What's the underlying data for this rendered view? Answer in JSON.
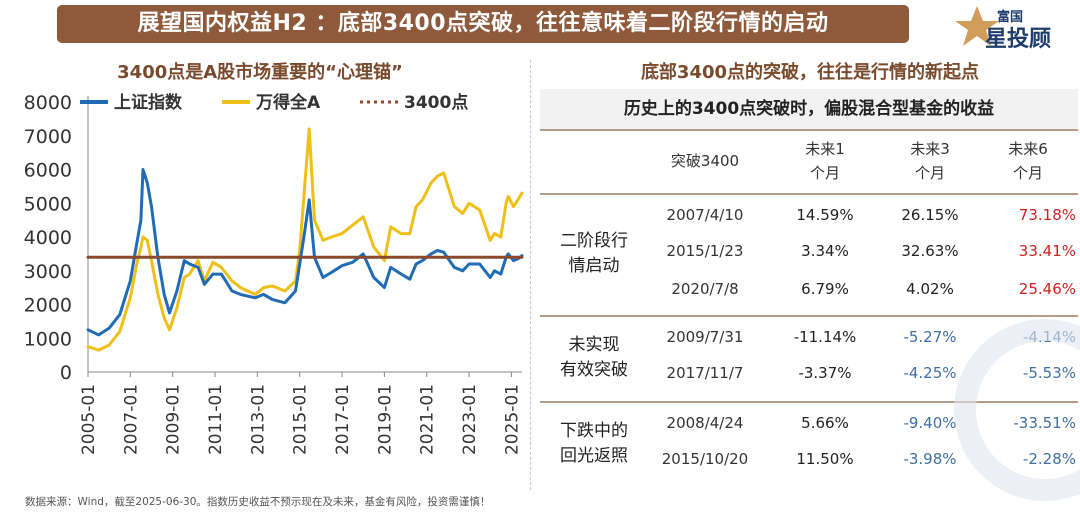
{
  "banner": {
    "title": "展望国内权益H2 ：底部3400点突破，往往意味着二阶段行情的启动"
  },
  "logo": {
    "line1": "富国",
    "line2": "星投顾"
  },
  "left_panel": {
    "title": "3400点是A股市场重要的“心理锚”"
  },
  "right_panel": {
    "title": "底部3400点的突破，往往是行情的新起点"
  },
  "chart_data": {
    "type": "line",
    "title": "3400点是A股市场重要的“心理锚”",
    "ylim": [
      0,
      8000
    ],
    "yticks": [
      0,
      1000,
      2000,
      3000,
      4000,
      5000,
      6000,
      7000,
      8000
    ],
    "xlim": [
      2005.0,
      2025.5
    ],
    "xticks": [
      "2005-01",
      "2007-01",
      "2009-01",
      "2011-01",
      "2013-01",
      "2015-01",
      "2017-01",
      "2019-01",
      "2021-01",
      "2023-01",
      "2025-01"
    ],
    "legend": [
      "上证指数",
      "万得全A",
      "3400点"
    ],
    "series": [
      {
        "name": "上证指数",
        "color": "#1f6bb5",
        "x": [
          2005.0,
          2005.5,
          2006.0,
          2006.5,
          2007.0,
          2007.3,
          2007.5,
          2007.6,
          2007.8,
          2008.0,
          2008.3,
          2008.6,
          2008.85,
          2009.2,
          2009.55,
          2009.8,
          2010.2,
          2010.5,
          2010.9,
          2011.3,
          2011.8,
          2012.2,
          2012.9,
          2013.3,
          2013.7,
          2014.3,
          2014.8,
          2015.0,
          2015.2,
          2015.45,
          2015.7,
          2016.1,
          2016.5,
          2017.0,
          2017.5,
          2018.0,
          2018.5,
          2019.0,
          2019.3,
          2019.8,
          2020.2,
          2020.5,
          2020.8,
          2021.2,
          2021.5,
          2021.8,
          2022.3,
          2022.7,
          2023.0,
          2023.5,
          2024.0,
          2024.2,
          2024.5,
          2024.75,
          2024.85,
          2025.1,
          2025.3,
          2025.5
        ],
        "values": [
          1250,
          1100,
          1300,
          1700,
          2700,
          3800,
          4500,
          6000,
          5600,
          4900,
          3400,
          2300,
          1750,
          2400,
          3300,
          3200,
          3100,
          2600,
          2900,
          2900,
          2400,
          2300,
          2200,
          2300,
          2150,
          2050,
          2400,
          3200,
          4000,
          5100,
          3400,
          2800,
          2950,
          3150,
          3250,
          3500,
          2800,
          2500,
          3100,
          2900,
          2750,
          3200,
          3300,
          3500,
          3600,
          3550,
          3100,
          3000,
          3200,
          3200,
          2800,
          3000,
          2900,
          3400,
          3500,
          3300,
          3350,
          3450
        ]
      },
      {
        "name": "万得全A",
        "color": "#f0bf17",
        "x": [
          2005.0,
          2005.5,
          2006.0,
          2006.5,
          2007.0,
          2007.3,
          2007.5,
          2007.6,
          2007.8,
          2008.0,
          2008.3,
          2008.6,
          2008.85,
          2009.2,
          2009.55,
          2009.8,
          2010.2,
          2010.5,
          2010.9,
          2011.3,
          2011.8,
          2012.2,
          2012.9,
          2013.3,
          2013.7,
          2014.3,
          2014.8,
          2015.0,
          2015.2,
          2015.45,
          2015.7,
          2016.1,
          2016.5,
          2017.0,
          2017.5,
          2018.0,
          2018.5,
          2019.0,
          2019.3,
          2019.8,
          2020.2,
          2020.5,
          2020.8,
          2021.2,
          2021.5,
          2021.8,
          2022.3,
          2022.7,
          2023.0,
          2023.5,
          2024.0,
          2024.2,
          2024.5,
          2024.75,
          2024.85,
          2025.1,
          2025.3,
          2025.5
        ],
        "values": [
          750,
          650,
          800,
          1200,
          2200,
          3200,
          3700,
          4000,
          3900,
          3300,
          2300,
          1600,
          1250,
          1900,
          2800,
          2900,
          3300,
          2700,
          3250,
          3100,
          2700,
          2500,
          2300,
          2500,
          2550,
          2400,
          2700,
          3600,
          5200,
          7200,
          4500,
          3900,
          4000,
          4100,
          4350,
          4600,
          3700,
          3300,
          4300,
          4100,
          4100,
          4900,
          5100,
          5600,
          5800,
          5900,
          4900,
          4700,
          5000,
          4800,
          3900,
          4100,
          4000,
          5000,
          5200,
          4900,
          5100,
          5300
        ]
      },
      {
        "name": "3400点",
        "color": "#8a4a2c",
        "x": [
          2005.0,
          2025.5
        ],
        "values": [
          3400,
          3400
        ]
      }
    ]
  },
  "table": {
    "title": "历史上的3400点突破时，偏股混合型基金的收益",
    "headers": {
      "date": "突破3400",
      "m1_a": "未来1",
      "m1_b": "个月",
      "m3_a": "未来3",
      "m3_b": "个月",
      "m6_a": "未来6",
      "m6_b": "个月"
    },
    "groups": [
      {
        "label_a": "二阶段行",
        "label_b": "情启动",
        "rows": [
          {
            "date": "2007/4/10",
            "m1": "14.59%",
            "m3": "26.15%",
            "m6": "73.18%"
          },
          {
            "date": "2015/1/23",
            "m1": "3.34%",
            "m3": "32.63%",
            "m6": "33.41%"
          },
          {
            "date": "2020/7/8",
            "m1": "6.79%",
            "m3": "4.02%",
            "m6": "25.46%"
          }
        ]
      },
      {
        "label_a": "未实现",
        "label_b": "有效突破",
        "rows": [
          {
            "date": "2009/7/31",
            "m1": "-11.14%",
            "m3": "-5.27%",
            "m6": "-4.14%"
          },
          {
            "date": "2017/11/7",
            "m1": "-3.37%",
            "m3": "-4.25%",
            "m6": "-5.53%"
          }
        ]
      },
      {
        "label_a": "下跌中的",
        "label_b": "回光返照",
        "rows": [
          {
            "date": "2008/4/24",
            "m1": "5.66%",
            "m3": "-9.40%",
            "m6": "-33.51%"
          },
          {
            "date": "2015/10/20",
            "m1": "11.50%",
            "m3": "-3.98%",
            "m6": "-2.28%"
          }
        ]
      }
    ]
  },
  "footer": {
    "note": "数据来源：Wind，截至2025-06-30。指数历史收益不预示现在及未来，基金有风险，投资需谨慎！"
  },
  "colors": {
    "brown": "#8e5a3b",
    "red": "#d31f1f",
    "blue": "#3f6fa6"
  }
}
